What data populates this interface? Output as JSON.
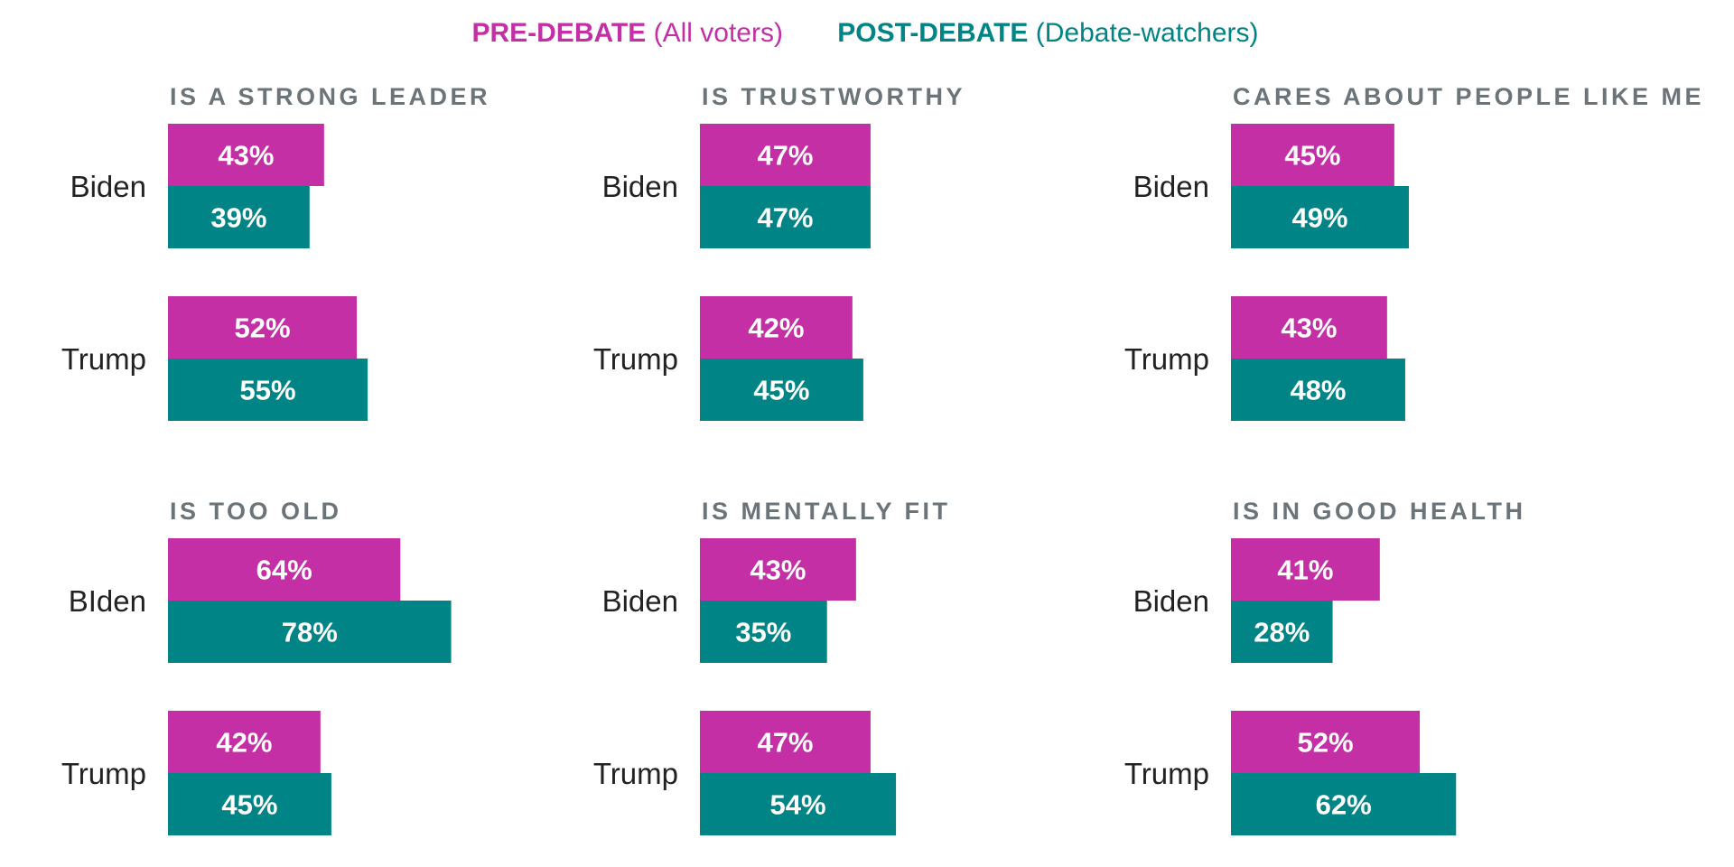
{
  "colors": {
    "pre": "#c42fa6",
    "post": "#008485",
    "title": "#6b7479",
    "text": "#222222"
  },
  "legend": {
    "pre_bold": "PRE-DEBATE",
    "pre_rest": " (All voters)",
    "post_bold": "POST-DEBATE",
    "post_rest": " (Debate-watchers)"
  },
  "chart_data": {
    "type": "bar",
    "orientation": "horizontal",
    "series": [
      {
        "name": "PRE-DEBATE (All voters)",
        "key": "pre"
      },
      {
        "name": "POST-DEBATE (Debate-watchers)",
        "key": "post"
      }
    ],
    "value_max": 100,
    "panels": [
      {
        "title": "IS A STRONG LEADER",
        "rows": [
          {
            "label": "Biden",
            "pre": 43,
            "post": 39,
            "pre_text": "43%",
            "post_text": "39%"
          },
          {
            "label": "Trump",
            "pre": 52,
            "post": 55,
            "pre_text": "52%",
            "post_text": "55%"
          }
        ]
      },
      {
        "title": "IS TRUSTWORTHY",
        "rows": [
          {
            "label": "Biden",
            "pre": 47,
            "post": 47,
            "pre_text": "47%",
            "post_text": "47%"
          },
          {
            "label": "Trump",
            "pre": 42,
            "post": 45,
            "pre_text": "42%",
            "post_text": "45%"
          }
        ]
      },
      {
        "title": "CARES ABOUT PEOPLE LIKE ME",
        "rows": [
          {
            "label": "Biden",
            "pre": 45,
            "post": 49,
            "pre_text": "45%",
            "post_text": "49%"
          },
          {
            "label": "Trump",
            "pre": 43,
            "post": 48,
            "pre_text": "43%",
            "post_text": "48%"
          }
        ]
      },
      {
        "title": "IS TOO OLD",
        "rows": [
          {
            "label": "BIden",
            "pre": 64,
            "post": 78,
            "pre_text": "64%",
            "post_text": "78%"
          },
          {
            "label": "Trump",
            "pre": 42,
            "post": 45,
            "pre_text": "42%",
            "post_text": "45%"
          }
        ]
      },
      {
        "title": "IS MENTALLY FIT",
        "rows": [
          {
            "label": "Biden",
            "pre": 43,
            "post": 35,
            "pre_text": "43%",
            "post_text": "35%"
          },
          {
            "label": "Trump",
            "pre": 47,
            "post": 54,
            "pre_text": "47%",
            "post_text": "54%"
          }
        ]
      },
      {
        "title": "IS IN GOOD HEALTH",
        "rows": [
          {
            "label": "Biden",
            "pre": 41,
            "post": 28,
            "pre_text": "41%",
            "post_text": "28%"
          },
          {
            "label": "Trump",
            "pre": 52,
            "post": 62,
            "pre_text": "52%",
            "post_text": "62%"
          }
        ]
      }
    ]
  }
}
